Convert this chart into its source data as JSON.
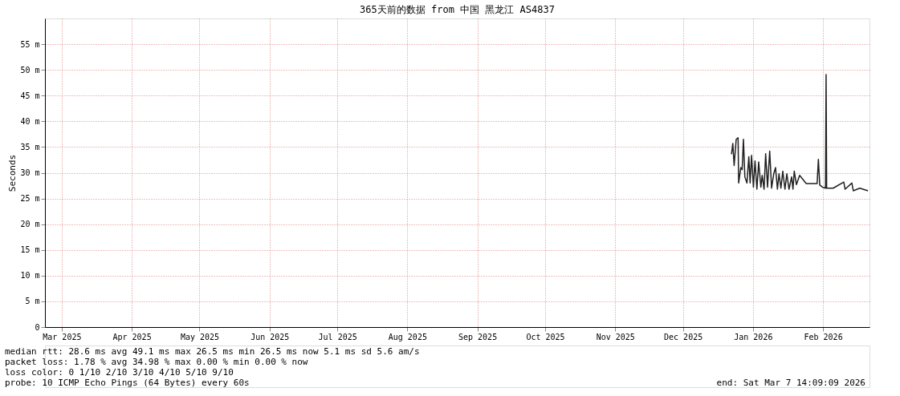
{
  "chart_data": {
    "type": "line",
    "title": "365天前的数据 from  中国 黑龙江 AS4837",
    "ylabel": "Seconds",
    "x": [
      "2026-01-05T12:00",
      "2026-01-06T02:00",
      "2026-01-06T16:00",
      "2026-01-07T14:00",
      "2026-01-08T10:00",
      "2026-01-08T16:00",
      "2026-01-09T15:00",
      "2026-01-10T05:00",
      "2026-01-10T19:00",
      "2026-01-11T10:00",
      "2026-01-12T08:00",
      "2026-01-13T04:00",
      "2026-01-13T18:00",
      "2026-01-14T09:00",
      "2026-01-15T05:00",
      "2026-01-15T22:00",
      "2026-01-16T18:00",
      "2026-01-17T13:00",
      "2026-01-18T12:00",
      "2026-01-19T02:00",
      "2026-01-19T22:00",
      "2026-01-20T15:00",
      "2026-01-21T11:00",
      "2026-01-22T10:00",
      "2026-01-23T06:00",
      "2026-01-24T05:00",
      "2026-01-25T00:00",
      "2026-01-25T20:00",
      "2026-01-26T13:00",
      "2026-01-27T09:00",
      "2026-01-28T05:00",
      "2026-01-29T04:00",
      "2026-01-30T00:00",
      "2026-01-30T23:00",
      "2026-02-01T03:00",
      "2026-02-01T17:00",
      "2026-02-02T07:00",
      "2026-02-03T06:00",
      "2026-02-04T16:00",
      "2026-02-07T14:00",
      "2026-02-12T10:00",
      "2026-02-12T23:00",
      "2026-02-13T14:00",
      "2026-02-14T19:00",
      "2026-02-16T03:00",
      "2026-02-16T09:00",
      "2026-02-16T15:00",
      "2026-02-19T12:00",
      "2026-02-24T05:00",
      "2026-02-24T19:00",
      "2026-02-27T19:00",
      "2026-02-28T10:00",
      "2026-03-03T07:00",
      "2026-03-06T22:00"
    ],
    "series": [
      {
        "color": "#202020",
        "values": [
          33.6,
          35.7,
          31.4,
          36.5,
          36.8,
          28.0,
          31.0,
          30.6,
          36.5,
          29.2,
          28.0,
          33.1,
          28.0,
          33.4,
          27.2,
          32.3,
          26.8,
          32.1,
          27.2,
          29.5,
          26.8,
          33.7,
          27.2,
          34.2,
          27.0,
          29.8,
          31.0,
          26.8,
          29.8,
          27.0,
          30.3,
          26.8,
          29.8,
          26.8,
          29.2,
          26.8,
          30.3,
          27.7,
          29.5,
          27.9,
          27.9,
          32.6,
          27.6,
          27.2,
          27.0,
          49.1,
          27.0,
          27.0,
          28.2,
          26.8,
          28.0,
          26.5,
          27.0,
          26.5
        ]
      }
    ],
    "xlim": [
      "2025-03-07T14:09",
      "2026-03-07T14:09"
    ],
    "xticks": [
      {
        "value": "2025-03-15",
        "label": "Mar 2025"
      },
      {
        "value": "2025-04-15",
        "label": "Apr 2025"
      },
      {
        "value": "2025-05-15",
        "label": "May 2025"
      },
      {
        "value": "2025-06-15",
        "label": "Jun 2025"
      },
      {
        "value": "2025-07-15",
        "label": "Jul 2025"
      },
      {
        "value": "2025-08-15",
        "label": "Aug 2025"
      },
      {
        "value": "2025-09-15",
        "label": "Sep 2025"
      },
      {
        "value": "2025-10-15",
        "label": "Oct 2025"
      },
      {
        "value": "2025-11-15",
        "label": "Nov 2025"
      },
      {
        "value": "2025-12-15",
        "label": "Dec 2025"
      },
      {
        "value": "2026-01-15",
        "label": "Jan 2026"
      },
      {
        "value": "2026-02-15",
        "label": "Feb 2026"
      }
    ],
    "ylim": [
      0,
      60
    ],
    "yticks": [
      0,
      {
        "value": 5,
        "label": "5 m"
      },
      {
        "value": 10,
        "label": "10 m"
      },
      {
        "value": 15,
        "label": "15 m"
      },
      {
        "value": 20,
        "label": "20 m"
      },
      {
        "value": 25,
        "label": "25 m"
      },
      {
        "value": 30,
        "label": "30 m"
      },
      {
        "value": 35,
        "label": "35 m"
      },
      {
        "value": 40,
        "label": "40 m"
      },
      {
        "value": 45,
        "label": "45 m"
      },
      {
        "value": 50,
        "label": "50 m"
      },
      {
        "value": 55,
        "label": "55 m"
      }
    ],
    "grid": true,
    "annotations": [
      "median rtt:  28.6 ms avg  49.1 ms max  26.5 ms min  26.5 ms now  5.1 ms sd  5.6   am/s",
      "packet loss: 1.78 % avg  34.98 % max  0.00 % min  0.00 % now",
      "loss color:  0  1/10  2/10  3/10  4/10  5/10  9/10",
      "probe:       10 ICMP Echo Pings (64 Bytes) every 60s",
      "end: Sat Mar  7 14:09:09 2026"
    ]
  }
}
